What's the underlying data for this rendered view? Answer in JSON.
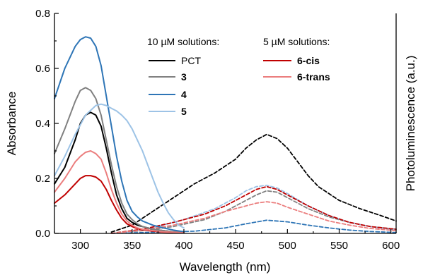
{
  "chart_data": {
    "type": "line",
    "xlabel": "Wavelength (nm)",
    "ylabel_left": "Absorbance",
    "ylabel_right": "Photoluminescence (a.u.)",
    "xlim": [
      275,
      605
    ],
    "ylim": [
      0,
      0.8
    ],
    "x_ticks": [
      "300",
      "350",
      "400",
      "450",
      "500",
      "550",
      "600"
    ],
    "y_ticks": [
      "0.0",
      "0.2",
      "0.4",
      "0.6",
      "0.8"
    ],
    "grid": false,
    "legend": {
      "position": "top-right",
      "group1_title": "10 µM solutions:",
      "group2_title": "5 µM solutions:"
    },
    "absorbance_series": [
      {
        "name": "PCT",
        "color": "#000000",
        "x": [
          275,
          285,
          295,
          300,
          305,
          310,
          315,
          320,
          325,
          330,
          335,
          340,
          345,
          350,
          355,
          360,
          370,
          380,
          390,
          400
        ],
        "y": [
          0.18,
          0.24,
          0.34,
          0.4,
          0.43,
          0.44,
          0.43,
          0.39,
          0.31,
          0.22,
          0.14,
          0.09,
          0.055,
          0.04,
          0.03,
          0.025,
          0.015,
          0.01,
          0.006,
          0.004
        ]
      },
      {
        "name": "3",
        "color": "#808080",
        "x": [
          275,
          285,
          295,
          300,
          305,
          310,
          315,
          320,
          325,
          330,
          335,
          340,
          345,
          350,
          355,
          360,
          370,
          380,
          390,
          400
        ],
        "y": [
          0.29,
          0.38,
          0.48,
          0.52,
          0.53,
          0.52,
          0.49,
          0.43,
          0.34,
          0.25,
          0.17,
          0.11,
          0.07,
          0.05,
          0.035,
          0.025,
          0.015,
          0.01,
          0.006,
          0.004
        ]
      },
      {
        "name": "4",
        "color": "#2E75B6",
        "x": [
          275,
          285,
          295,
          300,
          305,
          310,
          315,
          320,
          325,
          330,
          335,
          340,
          345,
          350,
          355,
          360,
          370,
          380,
          390,
          400
        ],
        "y": [
          0.49,
          0.6,
          0.68,
          0.705,
          0.715,
          0.71,
          0.68,
          0.61,
          0.5,
          0.39,
          0.28,
          0.19,
          0.12,
          0.08,
          0.06,
          0.045,
          0.03,
          0.02,
          0.012,
          0.006
        ]
      },
      {
        "name": "5",
        "color": "#9DC3E6",
        "x": [
          275,
          285,
          295,
          305,
          315,
          320,
          325,
          330,
          335,
          340,
          345,
          350,
          355,
          360,
          365,
          370,
          375,
          380,
          385,
          390,
          395,
          400
        ],
        "y": [
          0.21,
          0.28,
          0.36,
          0.43,
          0.465,
          0.47,
          0.465,
          0.455,
          0.445,
          0.43,
          0.41,
          0.38,
          0.34,
          0.3,
          0.25,
          0.2,
          0.15,
          0.11,
          0.075,
          0.05,
          0.03,
          0.02
        ]
      },
      {
        "name": "6-cis",
        "color": "#C00000",
        "x": [
          275,
          285,
          295,
          300,
          305,
          310,
          315,
          320,
          325,
          330,
          335,
          340,
          345,
          350,
          355,
          360,
          370,
          380,
          390,
          400
        ],
        "y": [
          0.11,
          0.14,
          0.18,
          0.2,
          0.21,
          0.21,
          0.205,
          0.19,
          0.16,
          0.12,
          0.085,
          0.055,
          0.035,
          0.025,
          0.018,
          0.013,
          0.008,
          0.005,
          0.003,
          0.002
        ]
      },
      {
        "name": "6-trans",
        "color": "#EB7D7D",
        "x": [
          275,
          285,
          295,
          300,
          305,
          310,
          315,
          320,
          325,
          330,
          335,
          340,
          345,
          350,
          355,
          360,
          370,
          380,
          390,
          400
        ],
        "y": [
          0.15,
          0.2,
          0.26,
          0.28,
          0.295,
          0.3,
          0.29,
          0.27,
          0.22,
          0.16,
          0.11,
          0.07,
          0.045,
          0.03,
          0.02,
          0.015,
          0.01,
          0.006,
          0.004,
          0.002
        ]
      }
    ],
    "photoluminescence_series": [
      {
        "name": "PCT",
        "color": "#000000",
        "x": [
          330,
          350,
          370,
          390,
          410,
          430,
          450,
          460,
          470,
          480,
          490,
          500,
          510,
          520,
          530,
          550,
          570,
          590,
          605
        ],
        "y": [
          0.005,
          0.03,
          0.08,
          0.13,
          0.18,
          0.22,
          0.27,
          0.31,
          0.34,
          0.36,
          0.345,
          0.31,
          0.26,
          0.21,
          0.17,
          0.12,
          0.09,
          0.065,
          0.045
        ]
      },
      {
        "name": "3",
        "color": "#808080",
        "x": [
          330,
          360,
          390,
          420,
          440,
          460,
          470,
          480,
          490,
          500,
          520,
          540,
          560,
          580,
          605
        ],
        "y": [
          0.0,
          0.01,
          0.025,
          0.05,
          0.08,
          0.12,
          0.14,
          0.155,
          0.15,
          0.13,
          0.09,
          0.06,
          0.04,
          0.025,
          0.015
        ]
      },
      {
        "name": "4",
        "color": "#2E75B6",
        "x": [
          330,
          370,
          410,
          440,
          460,
          480,
          500,
          520,
          540,
          560,
          580,
          605
        ],
        "y": [
          0.0,
          0.004,
          0.008,
          0.02,
          0.035,
          0.048,
          0.042,
          0.03,
          0.02,
          0.012,
          0.007,
          0.003
        ]
      },
      {
        "name": "5",
        "color": "#9DC3E6",
        "x": [
          340,
          370,
          400,
          430,
          450,
          460,
          470,
          480,
          490,
          500,
          520,
          540,
          560,
          580,
          605
        ],
        "y": [
          0.0,
          0.02,
          0.05,
          0.09,
          0.13,
          0.155,
          0.17,
          0.175,
          0.165,
          0.145,
          0.1,
          0.065,
          0.04,
          0.025,
          0.012
        ]
      },
      {
        "name": "6-cis",
        "color": "#C00000",
        "x": [
          330,
          360,
          390,
          420,
          440,
          460,
          470,
          480,
          490,
          500,
          520,
          540,
          560,
          580,
          605
        ],
        "y": [
          0.0,
          0.015,
          0.04,
          0.07,
          0.1,
          0.14,
          0.16,
          0.17,
          0.16,
          0.14,
          0.1,
          0.065,
          0.04,
          0.025,
          0.015
        ]
      },
      {
        "name": "6-trans",
        "color": "#EB7D7D",
        "x": [
          330,
          360,
          390,
          420,
          440,
          460,
          470,
          480,
          490,
          500,
          520,
          540,
          560,
          580,
          605
        ],
        "y": [
          0.0,
          0.012,
          0.03,
          0.055,
          0.08,
          0.1,
          0.11,
          0.115,
          0.11,
          0.095,
          0.07,
          0.045,
          0.03,
          0.018,
          0.01
        ]
      }
    ]
  }
}
